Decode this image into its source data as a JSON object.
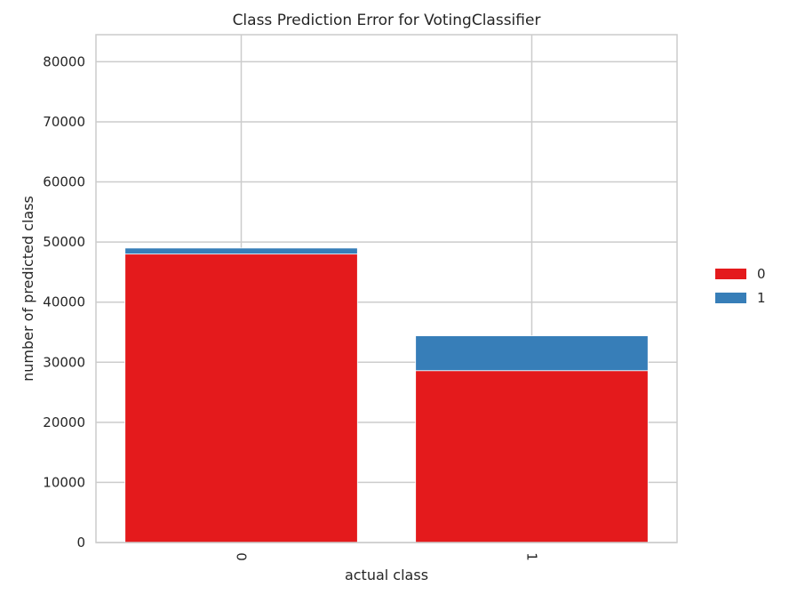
{
  "chart_data": {
    "type": "bar",
    "stacked": true,
    "title": "Class Prediction Error for VotingClassifier",
    "xlabel": "actual class",
    "ylabel": "number of predicted class",
    "categories": [
      "0",
      "1"
    ],
    "series": [
      {
        "name": "0",
        "color": "#e41a1c",
        "values": [
          48000,
          28600
        ]
      },
      {
        "name": "1",
        "color": "#377eb8",
        "values": [
          1000,
          5800
        ]
      }
    ],
    "ylim": [
      0,
      84500
    ],
    "yticks": [
      0,
      10000,
      20000,
      30000,
      40000,
      50000,
      60000,
      70000,
      80000
    ],
    "grid": true,
    "legend_position": "right"
  }
}
